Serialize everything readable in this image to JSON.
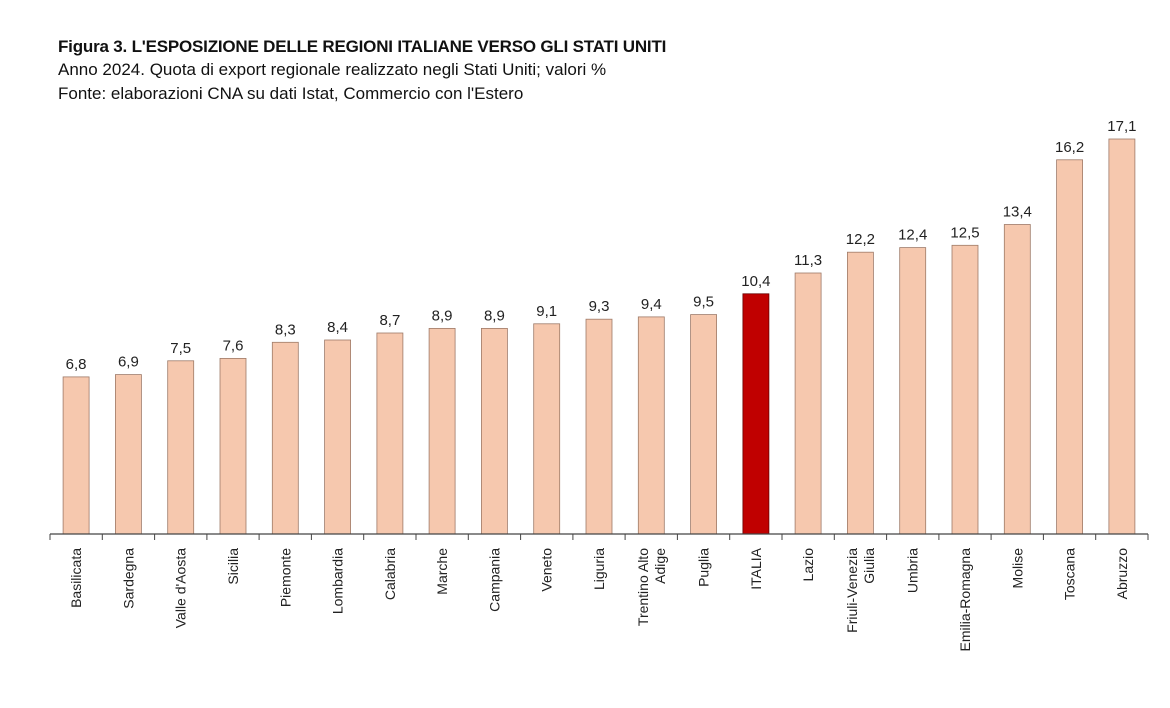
{
  "header": {
    "title": "Figura 3. L'ESPOSIZIONE DELLE REGIONI ITALIANE VERSO GLI STATI UNITI",
    "subtitle": "Anno 2024. Quota di export regionale realizzato negli Stati Uniti; valori %",
    "source": "Fonte: elaborazioni CNA su dati Istat, Commercio con l'Estero"
  },
  "colors": {
    "bar": "#f6c8ae",
    "bar_border": "#9e7a68",
    "highlight": "#c00000",
    "highlight_border": "#6a0000",
    "axis": "#444444"
  },
  "chart_data": {
    "type": "bar",
    "categories": [
      "Basilicata",
      "Sardegna",
      "Valle d'Aosta",
      "Sicilia",
      "Piemonte",
      "Lombardia",
      "Calabria",
      "Marche",
      "Campania",
      "Veneto",
      "Liguria",
      "Trentino Alto Adige",
      "Puglia",
      "ITALIA",
      "Lazio",
      "Friuli-Venezia Giulia",
      "Umbria",
      "Emilia-Romagna",
      "Molise",
      "Toscana",
      "Abruzzo"
    ],
    "category_lines": [
      [
        "Basilicata"
      ],
      [
        "Sardegna"
      ],
      [
        "Valle d'Aosta"
      ],
      [
        "Sicilia"
      ],
      [
        "Piemonte"
      ],
      [
        "Lombardia"
      ],
      [
        "Calabria"
      ],
      [
        "Marche"
      ],
      [
        "Campania"
      ],
      [
        "Veneto"
      ],
      [
        "Liguria"
      ],
      [
        "Trentino Alto",
        "Adige"
      ],
      [
        "Puglia"
      ],
      [
        "ITALIA"
      ],
      [
        "Lazio"
      ],
      [
        "Friuli-Venezia",
        "Giulia"
      ],
      [
        "Umbria"
      ],
      [
        "Emilia-Romagna"
      ],
      [
        "Molise"
      ],
      [
        "Toscana"
      ],
      [
        "Abruzzo"
      ]
    ],
    "values": [
      6.8,
      6.9,
      7.5,
      7.6,
      8.3,
      8.4,
      8.7,
      8.9,
      8.9,
      9.1,
      9.3,
      9.4,
      9.5,
      10.4,
      11.3,
      12.2,
      12.4,
      12.5,
      13.4,
      16.2,
      17.1
    ],
    "value_labels": [
      "6,8",
      "6,9",
      "7,5",
      "7,6",
      "8,3",
      "8,4",
      "8,7",
      "8,9",
      "8,9",
      "9,1",
      "9,3",
      "9,4",
      "9,5",
      "10,4",
      "11,3",
      "12,2",
      "12,4",
      "12,5",
      "13,4",
      "16,2",
      "17,1"
    ],
    "highlight": "ITALIA",
    "ylim": [
      0,
      17.1
    ],
    "grid": false,
    "legend": false
  }
}
